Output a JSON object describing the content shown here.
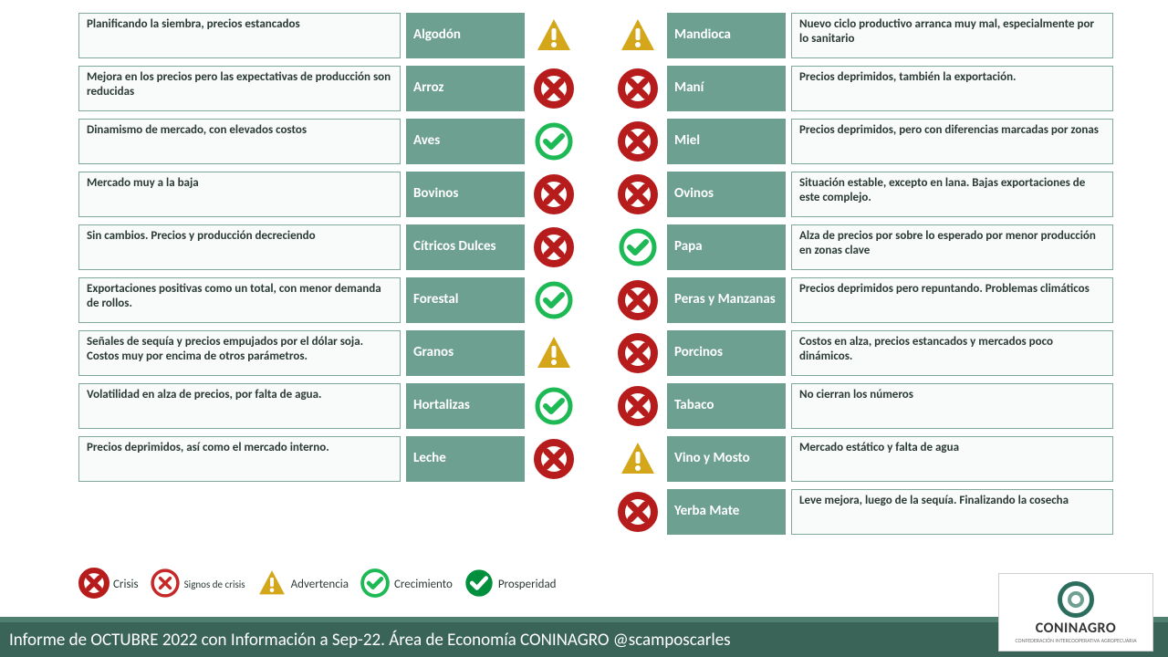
{
  "colors": {
    "name_bg": "#6da090",
    "desc_border": "#7fa99e",
    "footer_bg": "#3a6457",
    "footer_border": "#4e7f6f",
    "crisis_thick": "#b71c1c",
    "crisis_thin": "#c62828",
    "warning": "#d4a71a",
    "growth": "#1db954",
    "prosperity": "#008f3c"
  },
  "left": [
    {
      "name": "Algodón",
      "desc": "Planificando la siembra, precios estancados",
      "status": "warning"
    },
    {
      "name": "Arroz",
      "desc": "Mejora en los precios pero las expectativas de producción son reducidas",
      "status": "crisis_thick"
    },
    {
      "name": "Aves",
      "desc": "Dinamismo de mercado, con elevados costos",
      "status": "growth"
    },
    {
      "name": "Bovinos",
      "desc": "Mercado muy a la baja",
      "status": "crisis_thick"
    },
    {
      "name": "Cítricos Dulces",
      "desc": "Sin cambios. Precios y producción decreciendo",
      "status": "crisis_thick"
    },
    {
      "name": "Forestal",
      "desc": "Exportaciones positivas como un total, con menor demanda de rollos.",
      "status": "growth"
    },
    {
      "name": "Granos",
      "desc": "Señales de sequía y precios empujados por el dólar soja.  Costos muy por encima de otros parámetros.",
      "status": "warning"
    },
    {
      "name": "Hortalizas",
      "desc": "Volatilidad en alza de precios, por falta de agua.",
      "status": "growth"
    },
    {
      "name": "Leche",
      "desc": "Precios deprimidos, así como el mercado interno.",
      "status": "crisis_thick"
    }
  ],
  "right": [
    {
      "name": "Mandioca",
      "desc": "Nuevo ciclo productivo arranca muy mal, especialmente por lo sanitario",
      "status": "warning"
    },
    {
      "name": "Maní",
      "desc": "Precios deprimidos, también la exportación.",
      "status": "crisis_thick"
    },
    {
      "name": "Miel",
      "desc": "Precios deprimidos, pero con diferencias marcadas por zonas",
      "status": "crisis_thick"
    },
    {
      "name": "Ovinos",
      "desc": "Situación estable, excepto en lana. Bajas exportaciones de este complejo.",
      "status": "crisis_thick"
    },
    {
      "name": "Papa",
      "desc": "Alza de precios por sobre lo esperado por menor producción en zonas clave",
      "status": "growth"
    },
    {
      "name": "Peras y Manzanas",
      "desc": "Precios deprimidos pero repuntando. Problemas climáticos",
      "status": "crisis_thick"
    },
    {
      "name": "Porcinos",
      "desc": "Costos en alza, precios estancados y mercados poco dinámicos.",
      "status": "crisis_thick"
    },
    {
      "name": "Tabaco",
      "desc": "No cierran los números",
      "status": "crisis_thick"
    },
    {
      "name": "Vino  y Mosto",
      "desc": "Mercado estático y falta de agua",
      "status": "warning"
    },
    {
      "name": "Yerba Mate",
      "desc": "Leve mejora, luego de la sequía. Finalizando la cosecha",
      "status": "crisis_thick"
    }
  ],
  "legend": {
    "crisis_big": "Crisis",
    "crisis_small": "Signos de crisis",
    "warning": "Advertencia",
    "growth": "Crecimiento",
    "prosperity": "Prosperidad"
  },
  "footer": "Informe de OCTUBRE 2022 con Información a Sep-22. Área de Economía CONINAGRO       @scamposcarles",
  "logo": {
    "brand": "CONINAGRO",
    "sub": "CONFEDERACIÓN INTERCOOPERATIVA AGROPECUARIA"
  }
}
